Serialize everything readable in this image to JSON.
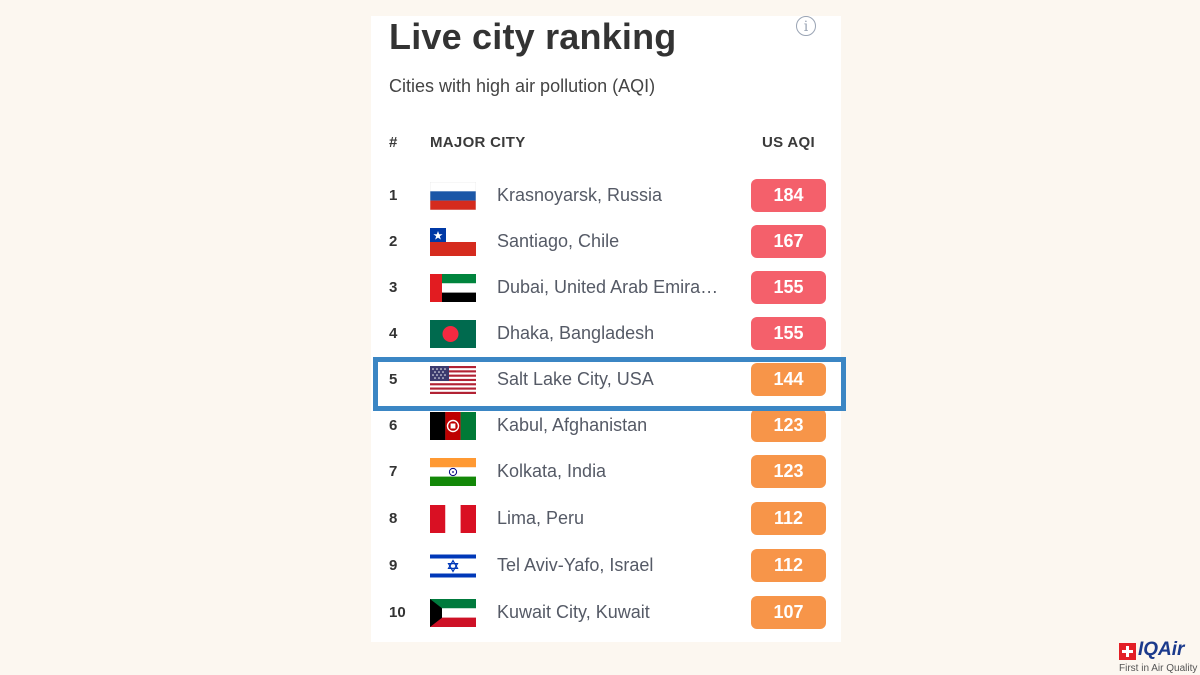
{
  "card": {
    "title": "Live city ranking",
    "info_glyph": "i",
    "subtitle": "Cities with high air pollution (AQI)"
  },
  "table": {
    "headers": {
      "rank": "#",
      "city": "MAJOR CITY",
      "aqi": "US AQI"
    },
    "rows": [
      {
        "rank": "1",
        "city": "Krasnoyarsk, Russia",
        "aqi": "184",
        "flag": "russia-flag-icon",
        "color": "#f4606b"
      },
      {
        "rank": "2",
        "city": "Santiago, Chile",
        "aqi": "167",
        "flag": "chile-flag-icon",
        "color": "#f4606b"
      },
      {
        "rank": "3",
        "city": "Dubai, United Arab Emira…",
        "aqi": "155",
        "flag": "uae-flag-icon",
        "color": "#f4606b"
      },
      {
        "rank": "4",
        "city": "Dhaka, Bangladesh",
        "aqi": "155",
        "flag": "bangladesh-flag-icon",
        "color": "#f4606b"
      },
      {
        "rank": "5",
        "city": "Salt Lake City, USA",
        "aqi": "144",
        "flag": "usa-flag-icon",
        "color": "#f79549"
      },
      {
        "rank": "6",
        "city": "Kabul, Afghanistan",
        "aqi": "123",
        "flag": "afghanistan-flag-icon",
        "color": "#f79549"
      },
      {
        "rank": "7",
        "city": "Kolkata, India",
        "aqi": "123",
        "flag": "india-flag-icon",
        "color": "#f79549"
      },
      {
        "rank": "8",
        "city": "Lima, Peru",
        "aqi": "112",
        "flag": "peru-flag-icon",
        "color": "#f79549"
      },
      {
        "rank": "9",
        "city": "Tel Aviv-Yafo, Israel",
        "aqi": "112",
        "flag": "israel-flag-icon",
        "color": "#f79549"
      },
      {
        "rank": "10",
        "city": "Kuwait City, Kuwait",
        "aqi": "107",
        "flag": "kuwait-flag-icon",
        "color": "#f79549"
      }
    ],
    "highlighted_rank": "5",
    "highlight_color": "#3b86c4"
  },
  "logo": {
    "name": "IQAir",
    "tagline": "First in Air Quality",
    "mark_color": "#e31f26"
  }
}
